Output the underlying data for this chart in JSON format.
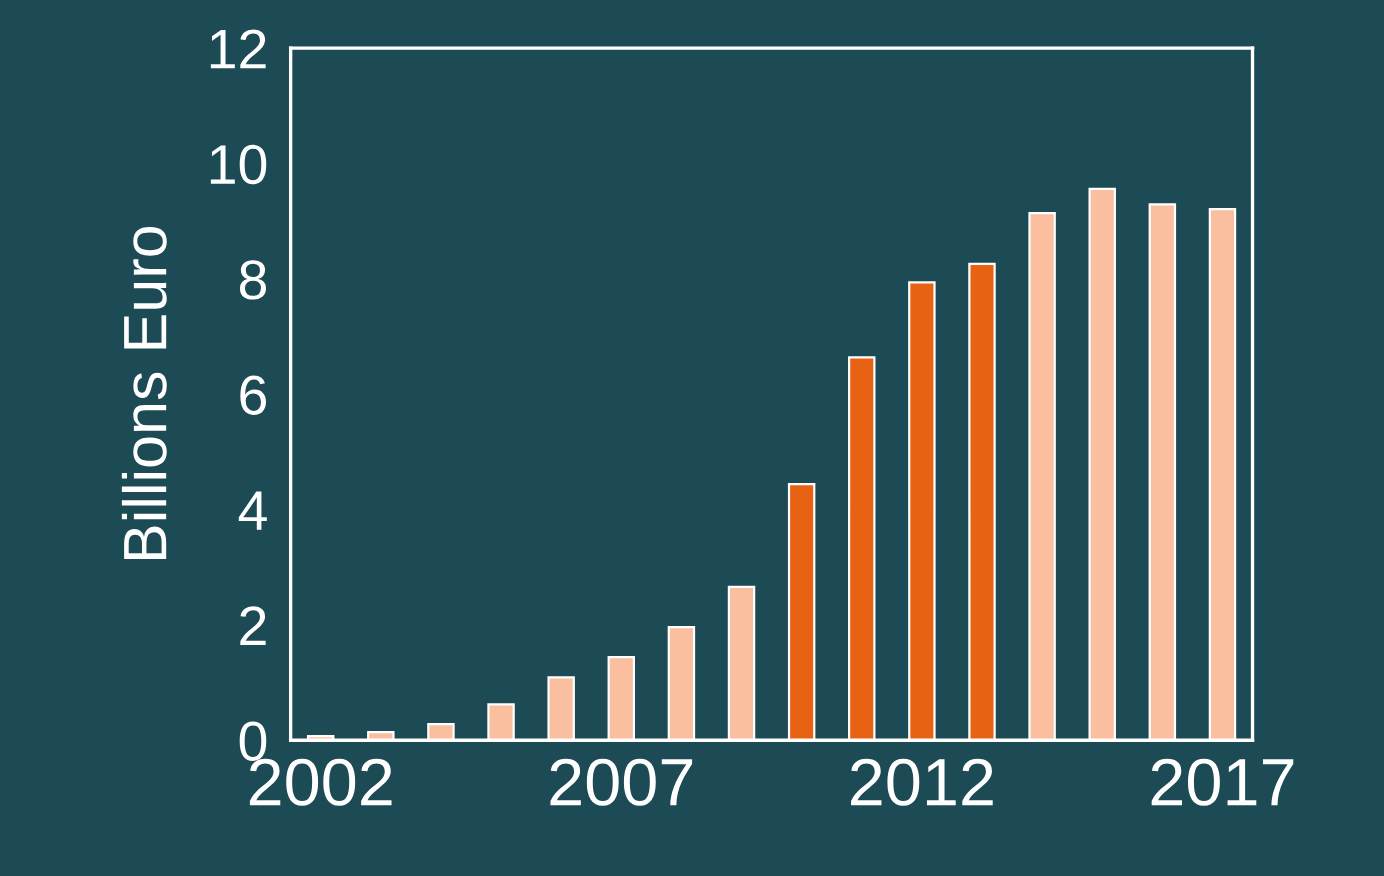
{
  "chart_data": {
    "type": "bar",
    "ylabel": "Billions Euro",
    "categories": [
      "2002",
      null,
      null,
      null,
      null,
      "2007",
      null,
      null,
      null,
      null,
      "2012",
      null,
      null,
      null,
      null,
      "2017"
    ],
    "values": [
      0.07,
      0.14,
      0.28,
      0.62,
      1.09,
      1.44,
      1.96,
      2.66,
      4.44,
      6.64,
      7.94,
      8.26,
      9.14,
      9.56,
      9.29,
      9.21
    ],
    "colors": [
      "#f9bf9f",
      "#f9bf9f",
      "#f9bf9f",
      "#f9bf9f",
      "#f9bf9f",
      "#f9bf9f",
      "#f9bf9f",
      "#f9bf9f",
      "#e86214",
      "#e86214",
      "#e86214",
      "#e86214",
      "#f9bf9f",
      "#f9bf9f",
      "#f9bf9f",
      "#f9bf9f"
    ],
    "ylim": [
      0,
      12
    ],
    "yticks": [
      0,
      2,
      4,
      6,
      8,
      10,
      12
    ],
    "grid": false,
    "legend": false
  }
}
